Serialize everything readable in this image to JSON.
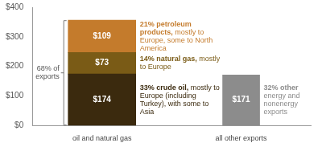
{
  "chart_data": {
    "type": "bar",
    "stacked": true,
    "categories": [
      "oil and natural gas",
      "all other exports"
    ],
    "series": [
      {
        "color": "#3b2a0e",
        "values": [
          174,
          null
        ],
        "value_labels": [
          "$174",
          null
        ],
        "annotation": {
          "text": "33% crude oil,",
          "note": "mostly to Europe (including Turkey), with some to Asia"
        }
      },
      {
        "color": "#7a5b16",
        "values": [
          73,
          null
        ],
        "value_labels": [
          "$73",
          null
        ],
        "annotation": {
          "text": "14% natural gas,",
          "note": "mostly to Europe"
        }
      },
      {
        "color": "#c47b2c",
        "values": [
          109,
          null
        ],
        "value_labels": [
          "$109",
          null
        ],
        "annotation": {
          "text": "21% petroleum products,",
          "note": "mostly to Europe, some to North America"
        }
      },
      {
        "color": "#8c8c8c",
        "values": [
          null,
          171
        ],
        "value_labels": [
          null,
          "$171"
        ],
        "annotation": {
          "text": "32% other",
          "note": "energy and nonenergy exports"
        }
      }
    ],
    "bracket_label": "68% of exports",
    "ylim": [
      0,
      400
    ],
    "yticks": [
      {
        "value": 0,
        "label": "$0"
      },
      {
        "value": 100,
        "label": "$100"
      },
      {
        "value": 200,
        "label": "$200"
      },
      {
        "value": 300,
        "label": "$300"
      },
      {
        "value": 400,
        "label": "$400"
      }
    ],
    "grid": false,
    "data_labels": true
  }
}
